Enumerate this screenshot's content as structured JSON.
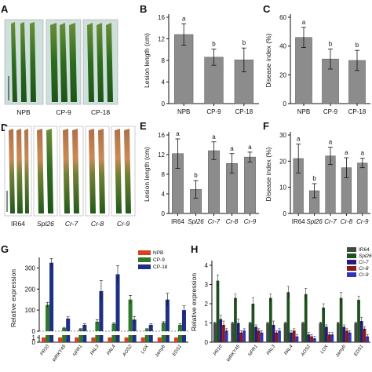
{
  "panel_labels": [
    "A",
    "B",
    "C",
    "D",
    "E",
    "F",
    "G",
    "H"
  ],
  "photos": {
    "top": [
      "NPB",
      "CP-9",
      "CP-18"
    ],
    "bottom": [
      "IR64",
      "Spl26",
      "Cr-7",
      "Cr-8",
      "Cr-9"
    ]
  },
  "colors": {
    "bar": "#8c8c8c",
    "npb": "#d9401f",
    "cp9": "#2f7a2a",
    "cp18": "#1f2f86",
    "ir64": "#3e4a3e",
    "spl26": "#1f5020",
    "cr7": "#2a1b7a",
    "cr8": "#8b1a1a",
    "cr9": "#3037b8"
  },
  "chart_data": [
    {
      "panel": "B",
      "type": "bar",
      "categories": [
        "NPB",
        "CP-9",
        "CP-18"
      ],
      "values": [
        12.8,
        8.6,
        8.1
      ],
      "errors": [
        2.0,
        1.5,
        2.2
      ],
      "significance": [
        "a",
        "b",
        "b"
      ],
      "ylabel": "Lesion length (cm)",
      "ylim": [
        0,
        16
      ],
      "yticks": [
        "0",
        "4",
        "8",
        "12",
        "16"
      ]
    },
    {
      "panel": "C",
      "type": "bar",
      "categories": [
        "NPB",
        "CP-9",
        "CP-18"
      ],
      "values": [
        46,
        31,
        30
      ],
      "errors": [
        7,
        7,
        7
      ],
      "significance": [
        "a",
        "b",
        "b"
      ],
      "ylabel": "Disease index (%)",
      "ylim": [
        0,
        60
      ],
      "yticks": [
        "0",
        "20",
        "40",
        "60"
      ]
    },
    {
      "panel": "E",
      "type": "bar",
      "categories": [
        "IR64",
        "Spl26",
        "Cr-7",
        "Cr-8",
        "Cr-9"
      ],
      "values": [
        12.2,
        4.9,
        12.8,
        10.2,
        11.5
      ],
      "errors": [
        3.0,
        1.8,
        1.8,
        2.0,
        1.0
      ],
      "significance": [
        "a",
        "b",
        "a",
        "a",
        "a"
      ],
      "ylabel": "Lesion length (cm)",
      "ylim": [
        0,
        16
      ],
      "yticks": [
        "0",
        "4",
        "8",
        "12",
        "16"
      ]
    },
    {
      "panel": "F",
      "type": "bar",
      "categories": [
        "IR64",
        "Spl26",
        "Cr-7",
        "Cr-8",
        "Cr-9"
      ],
      "values": [
        21,
        8.7,
        22,
        17.5,
        19.3
      ],
      "errors": [
        5.5,
        2.7,
        3.3,
        3.8,
        1.8
      ],
      "significance": [
        "a",
        "b",
        "a",
        "a",
        "a"
      ],
      "ylabel": "Disease index (%)",
      "ylim": [
        0,
        30
      ],
      "yticks": [
        "0",
        "10",
        "20",
        "30"
      ]
    },
    {
      "panel": "G",
      "type": "bar",
      "categories": [
        "PR10",
        "WRKY45",
        "NPR1",
        "PAL3",
        "PAL4",
        "AOS2",
        "LOX",
        "Jamyb",
        "EDS1"
      ],
      "series": [
        {
          "name": "NPB",
          "values": [
            1,
            1,
            1,
            1,
            1,
            1,
            1,
            1,
            1
          ],
          "errors": [
            0.1,
            0.1,
            0.1,
            0.1,
            0.1,
            0.1,
            0.1,
            0.1,
            0.1
          ]
        },
        {
          "name": "CP-9",
          "values": [
            125,
            15,
            10,
            45,
            35,
            150,
            10,
            40,
            30
          ],
          "errors": [
            12,
            3,
            2,
            10,
            5,
            20,
            2,
            5,
            5
          ]
        },
        {
          "name": "CP-18",
          "values": [
            325,
            60,
            30,
            190,
            270,
            55,
            30,
            150,
            100
          ],
          "errors": [
            20,
            8,
            5,
            50,
            40,
            15,
            5,
            30,
            20
          ]
        }
      ],
      "ylabel": "Relative expression",
      "yticks_upper": [
        "0",
        "100",
        "200",
        "300"
      ],
      "yticks_lower": [
        "0",
        "1"
      ],
      "ylim": [
        0,
        350
      ]
    },
    {
      "panel": "H",
      "type": "bar",
      "categories": [
        "PR10",
        "WRKY45",
        "NPR1",
        "PAL3",
        "PAL4",
        "AOS2",
        "LOX",
        "Jamyb",
        "EDS1"
      ],
      "series": [
        {
          "name": "IR64",
          "values": [
            1,
            1,
            1,
            1,
            1,
            1,
            1,
            1,
            1
          ],
          "errors": [
            0.05,
            0.05,
            0.05,
            0.05,
            0.05,
            0.05,
            0.05,
            0.05,
            0.05
          ]
        },
        {
          "name": "Spl26",
          "values": [
            3.2,
            2.3,
            2.0,
            2.3,
            2.6,
            2.5,
            1.8,
            2.3,
            2.2
          ],
          "errors": [
            0.3,
            0.2,
            0.3,
            0.2,
            0.3,
            0.3,
            0.2,
            0.3,
            0.2
          ]
        },
        {
          "name": "Cr-7",
          "values": [
            1.2,
            1.0,
            0.8,
            0.9,
            0.5,
            0.4,
            0.8,
            0.8,
            1.1
          ],
          "errors": [
            0.2,
            0.2,
            0.1,
            0.2,
            0.1,
            0.1,
            0.1,
            0.1,
            0.2
          ]
        },
        {
          "name": "Cr-8",
          "values": [
            0.9,
            0.5,
            0.6,
            0.5,
            0.6,
            0.3,
            0.4,
            0.6,
            0.7
          ],
          "errors": [
            0.2,
            0.1,
            0.1,
            0.1,
            0.1,
            0.1,
            0.1,
            0.1,
            0.1
          ]
        },
        {
          "name": "Cr-9",
          "values": [
            0.6,
            0.6,
            0.5,
            0.6,
            0.3,
            0.2,
            0.4,
            0.5,
            0.3
          ],
          "errors": [
            0.1,
            0.1,
            0.1,
            0.1,
            0.1,
            0.1,
            0.1,
            0.1,
            0.1
          ]
        }
      ],
      "ylabel": "Relative expression",
      "yticks": [
        "0",
        "1",
        "2",
        "3",
        "4"
      ],
      "ylim": [
        0,
        4
      ]
    }
  ]
}
